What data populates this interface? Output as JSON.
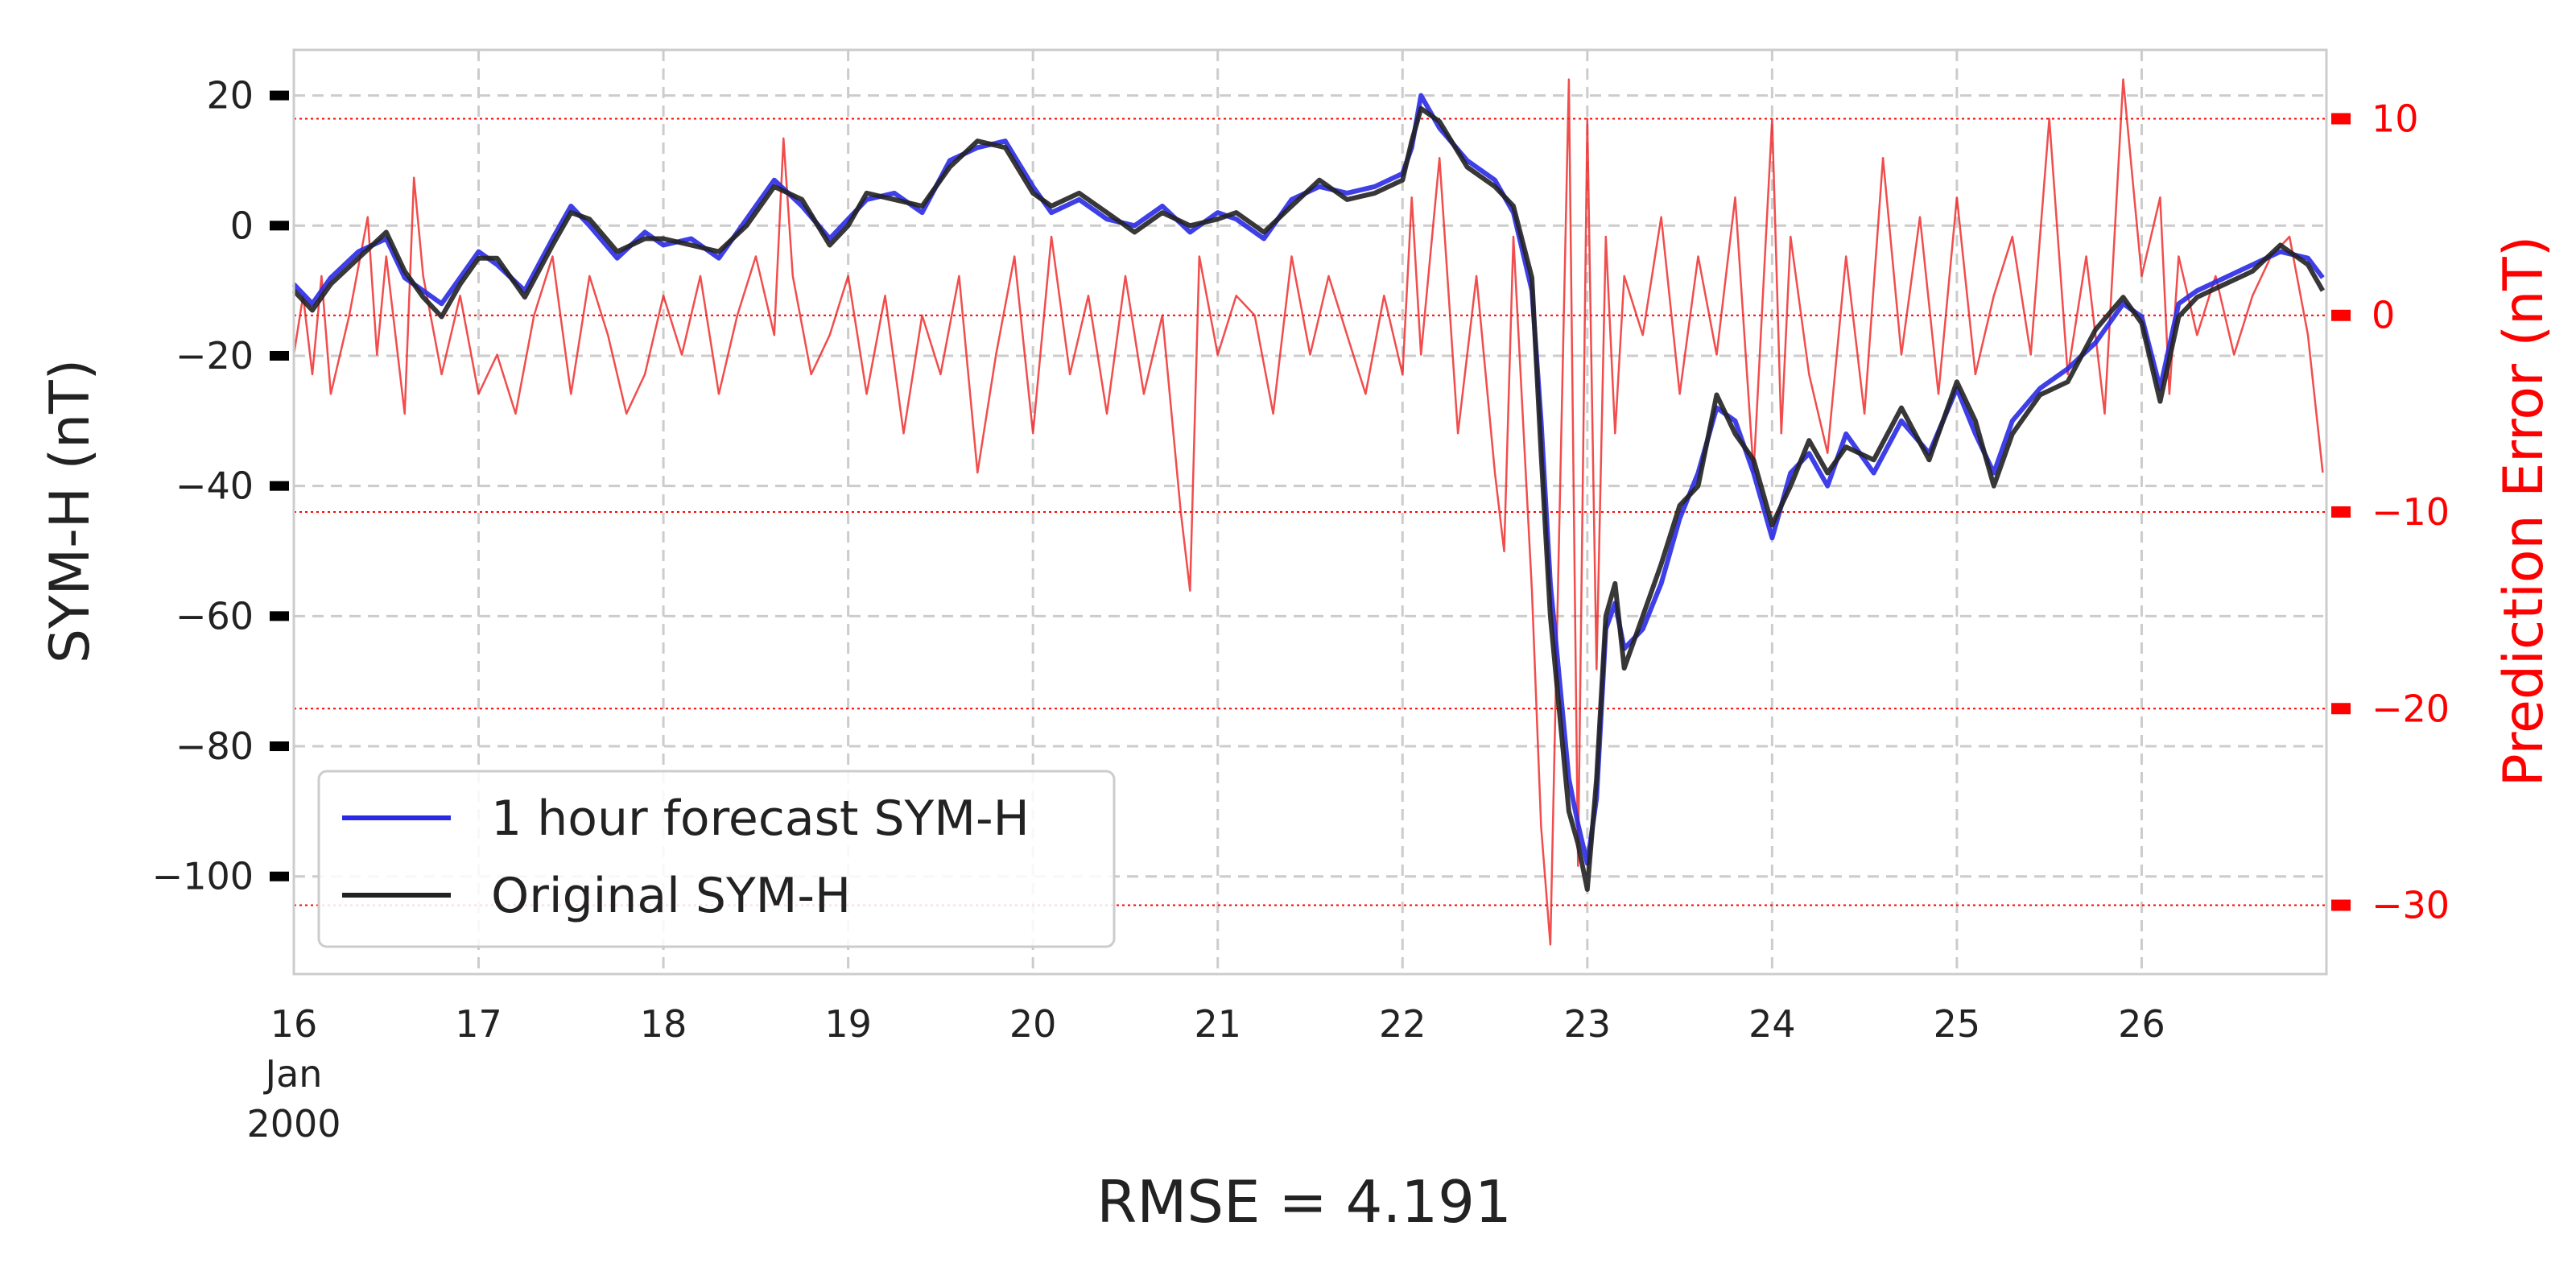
{
  "chart_data": {
    "type": "line",
    "xlabel": "RMSE = 4.191",
    "ylabel_left": "SYM-H (nT)",
    "ylabel_right": "Prediction Error (nT)",
    "x_range": [
      "2000-01-16",
      "2000-01-27"
    ],
    "x_ticks": [
      {
        "date": "2000-01-16",
        "label": "16",
        "sub1": "Jan",
        "sub2": "2000"
      },
      {
        "date": "2000-01-17",
        "label": "17"
      },
      {
        "date": "2000-01-18",
        "label": "18"
      },
      {
        "date": "2000-01-19",
        "label": "19"
      },
      {
        "date": "2000-01-20",
        "label": "20"
      },
      {
        "date": "2000-01-21",
        "label": "21"
      },
      {
        "date": "2000-01-22",
        "label": "22"
      },
      {
        "date": "2000-01-23",
        "label": "23"
      },
      {
        "date": "2000-01-24",
        "label": "24"
      },
      {
        "date": "2000-01-25",
        "label": "25"
      },
      {
        "date": "2000-01-26",
        "label": "26"
      }
    ],
    "y_left": {
      "ylim": [
        -115,
        27
      ],
      "ticks": [
        20,
        0,
        -20,
        -40,
        -60,
        -80,
        -100
      ],
      "tick_labels": [
        "20",
        "0",
        "−20",
        "−40",
        "−60",
        "−80",
        "−100"
      ]
    },
    "y_right": {
      "ylim": [
        -33.5,
        13.5
      ],
      "ticks": [
        10,
        0,
        -10,
        -20,
        -30
      ],
      "tick_labels": [
        "10",
        "0",
        "−10",
        "−20",
        "−30"
      ]
    },
    "grid": true,
    "legend_position": "lower-left",
    "legend": [
      {
        "label": "1 hour forecast SYM-H",
        "color": "#2a2ae6"
      },
      {
        "label": "Original SYM-H",
        "color": "#222222"
      }
    ],
    "series": [
      {
        "name": "1 hour forecast SYM-H",
        "color": "#2a2ae6",
        "axis": "left",
        "x_days": [
          0.0,
          0.1,
          0.2,
          0.35,
          0.5,
          0.6,
          0.7,
          0.8,
          0.9,
          1.0,
          1.1,
          1.25,
          1.4,
          1.5,
          1.6,
          1.75,
          1.9,
          2.0,
          2.15,
          2.3,
          2.45,
          2.6,
          2.75,
          2.9,
          3.0,
          3.1,
          3.25,
          3.4,
          3.55,
          3.7,
          3.85,
          4.0,
          4.1,
          4.25,
          4.4,
          4.55,
          4.7,
          4.85,
          5.0,
          5.1,
          5.25,
          5.4,
          5.55,
          5.7,
          5.85,
          6.0,
          6.05,
          6.1,
          6.2,
          6.35,
          6.5,
          6.6,
          6.7,
          6.75,
          6.8,
          6.85,
          6.9,
          6.95,
          7.0,
          7.05,
          7.1,
          7.15,
          7.2,
          7.3,
          7.4,
          7.5,
          7.6,
          7.7,
          7.8,
          7.9,
          8.0,
          8.1,
          8.2,
          8.3,
          8.4,
          8.55,
          8.7,
          8.85,
          9.0,
          9.1,
          9.2,
          9.3,
          9.45,
          9.6,
          9.75,
          9.9,
          10.0,
          10.1,
          10.2,
          10.3,
          10.45,
          10.6,
          10.75,
          10.9,
          10.98
        ],
        "values": [
          -9,
          -12,
          -8,
          -4,
          -2,
          -8,
          -10,
          -12,
          -8,
          -4,
          -6,
          -10,
          -2,
          3,
          0,
          -5,
          -1,
          -3,
          -2,
          -5,
          1,
          7,
          3,
          -2,
          1,
          4,
          5,
          2,
          10,
          12,
          13,
          6,
          2,
          4,
          1,
          0,
          3,
          -1,
          2,
          1,
          -2,
          4,
          6,
          5,
          6,
          8,
          12,
          20,
          15,
          10,
          7,
          2,
          -10,
          -30,
          -55,
          -70,
          -85,
          -92,
          -98,
          -88,
          -62,
          -58,
          -65,
          -62,
          -55,
          -45,
          -38,
          -28,
          -30,
          -38,
          -48,
          -38,
          -35,
          -40,
          -32,
          -38,
          -30,
          -35,
          -25,
          -32,
          -38,
          -30,
          -25,
          -22,
          -18,
          -12,
          -14,
          -25,
          -12,
          -10,
          -8,
          -6,
          -4,
          -5,
          -8
        ]
      },
      {
        "name": "Original SYM-H",
        "color": "#222222",
        "axis": "left",
        "x_days": [
          0.0,
          0.1,
          0.2,
          0.35,
          0.5,
          0.6,
          0.7,
          0.8,
          0.9,
          1.0,
          1.1,
          1.25,
          1.4,
          1.5,
          1.6,
          1.75,
          1.9,
          2.0,
          2.15,
          2.3,
          2.45,
          2.6,
          2.75,
          2.9,
          3.0,
          3.1,
          3.25,
          3.4,
          3.55,
          3.7,
          3.85,
          4.0,
          4.1,
          4.25,
          4.4,
          4.55,
          4.7,
          4.85,
          5.0,
          5.1,
          5.25,
          5.4,
          5.55,
          5.7,
          5.85,
          6.0,
          6.05,
          6.1,
          6.2,
          6.35,
          6.5,
          6.6,
          6.7,
          6.75,
          6.8,
          6.85,
          6.9,
          6.95,
          7.0,
          7.05,
          7.1,
          7.15,
          7.2,
          7.3,
          7.4,
          7.5,
          7.6,
          7.7,
          7.8,
          7.9,
          8.0,
          8.1,
          8.2,
          8.3,
          8.4,
          8.55,
          8.7,
          8.85,
          9.0,
          9.1,
          9.2,
          9.3,
          9.45,
          9.6,
          9.75,
          9.9,
          10.0,
          10.1,
          10.2,
          10.3,
          10.45,
          10.6,
          10.75,
          10.9,
          10.98
        ],
        "values": [
          -10,
          -13,
          -9,
          -5,
          -1,
          -7,
          -11,
          -14,
          -9,
          -5,
          -5,
          -11,
          -3,
          2,
          1,
          -4,
          -2,
          -2,
          -3,
          -4,
          0,
          6,
          4,
          -3,
          0,
          5,
          4,
          3,
          9,
          13,
          12,
          5,
          3,
          5,
          2,
          -1,
          2,
          0,
          1,
          2,
          -1,
          3,
          7,
          4,
          5,
          7,
          13,
          18,
          16,
          9,
          6,
          3,
          -8,
          -35,
          -60,
          -75,
          -90,
          -95,
          -102,
          -85,
          -60,
          -55,
          -68,
          -60,
          -52,
          -43,
          -40,
          -26,
          -32,
          -36,
          -46,
          -40,
          -33,
          -38,
          -34,
          -36,
          -28,
          -36,
          -24,
          -30,
          -40,
          -32,
          -26,
          -24,
          -16,
          -11,
          -15,
          -27,
          -14,
          -11,
          -9,
          -7,
          -3,
          -6,
          -10
        ]
      },
      {
        "name": "Prediction Error",
        "color": "#ee2020",
        "axis": "right",
        "x_days": [
          0.0,
          0.05,
          0.1,
          0.15,
          0.2,
          0.3,
          0.4,
          0.45,
          0.5,
          0.6,
          0.65,
          0.7,
          0.8,
          0.9,
          1.0,
          1.1,
          1.2,
          1.3,
          1.4,
          1.5,
          1.6,
          1.7,
          1.8,
          1.9,
          2.0,
          2.1,
          2.2,
          2.3,
          2.4,
          2.5,
          2.6,
          2.65,
          2.7,
          2.8,
          2.9,
          3.0,
          3.1,
          3.2,
          3.3,
          3.4,
          3.5,
          3.6,
          3.7,
          3.8,
          3.9,
          4.0,
          4.1,
          4.2,
          4.3,
          4.4,
          4.5,
          4.6,
          4.7,
          4.8,
          4.85,
          4.9,
          5.0,
          5.1,
          5.2,
          5.3,
          5.4,
          5.5,
          5.6,
          5.7,
          5.8,
          5.9,
          6.0,
          6.05,
          6.1,
          6.2,
          6.3,
          6.4,
          6.5,
          6.55,
          6.6,
          6.7,
          6.75,
          6.8,
          6.85,
          6.9,
          6.95,
          7.0,
          7.05,
          7.1,
          7.15,
          7.2,
          7.3,
          7.4,
          7.5,
          7.6,
          7.7,
          7.8,
          7.9,
          8.0,
          8.05,
          8.1,
          8.2,
          8.3,
          8.4,
          8.5,
          8.6,
          8.7,
          8.8,
          8.9,
          9.0,
          9.1,
          9.2,
          9.3,
          9.4,
          9.5,
          9.6,
          9.7,
          9.8,
          9.9,
          10.0,
          10.1,
          10.15,
          10.2,
          10.3,
          10.4,
          10.5,
          10.6,
          10.7,
          10.8,
          10.9,
          10.98
        ],
        "values": [
          -2,
          1,
          -3,
          2,
          -4,
          0,
          5,
          -2,
          3,
          -5,
          7,
          2,
          -3,
          1,
          -4,
          -2,
          -5,
          0,
          3,
          -4,
          2,
          -1,
          -5,
          -3,
          1,
          -2,
          2,
          -4,
          0,
          3,
          -1,
          9,
          2,
          -3,
          -1,
          2,
          -4,
          1,
          -6,
          0,
          -3,
          2,
          -8,
          -2,
          3,
          -6,
          4,
          -3,
          1,
          -5,
          2,
          -4,
          0,
          -10,
          -14,
          3,
          -2,
          1,
          0,
          -5,
          3,
          -2,
          2,
          -1,
          -4,
          1,
          -3,
          6,
          -2,
          8,
          -6,
          2,
          -8,
          -12,
          4,
          -14,
          -26,
          -32,
          -10,
          12,
          -28,
          10,
          -18,
          4,
          -6,
          2,
          -1,
          5,
          -4,
          3,
          -2,
          6,
          -8,
          10,
          -6,
          4,
          -3,
          -7,
          3,
          -5,
          8,
          -2,
          5,
          -4,
          6,
          -3,
          1,
          4,
          -2,
          10,
          -3,
          3,
          -5,
          12,
          2,
          6,
          -4,
          3,
          -1,
          2,
          -2,
          1,
          3,
          4,
          -1,
          -8
        ]
      }
    ]
  }
}
